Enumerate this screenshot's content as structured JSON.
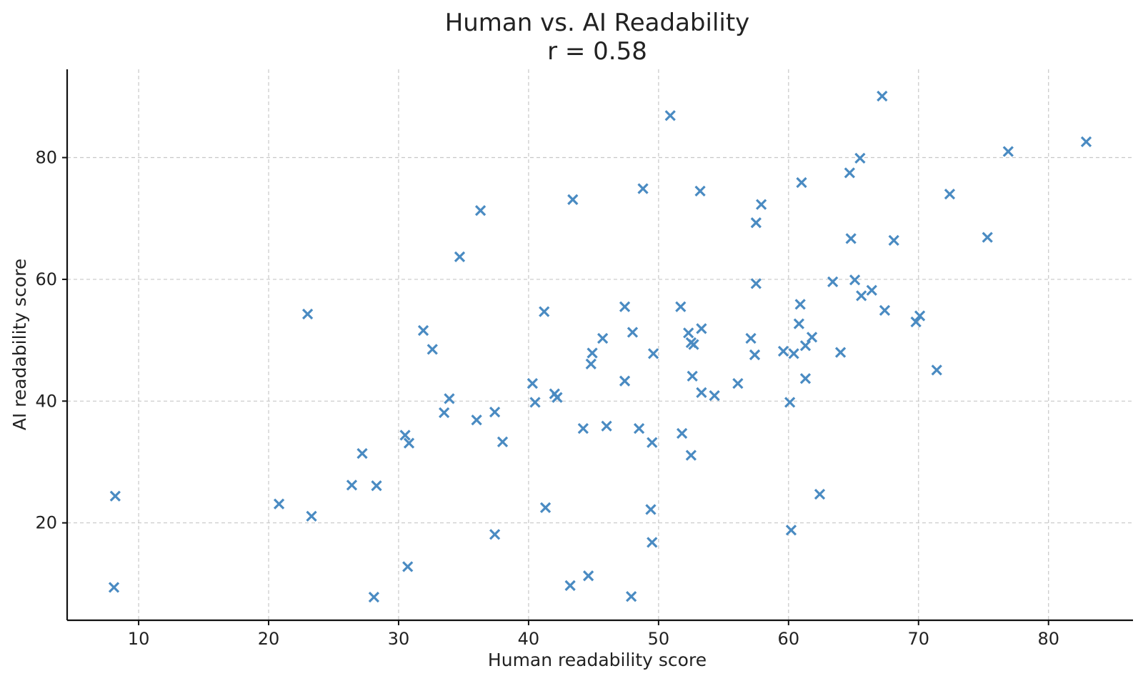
{
  "chart_data": {
    "type": "scatter",
    "title": "Human vs. AI Readability",
    "subtitle": "r = 0.58",
    "xlabel": "Human readability score",
    "ylabel": "AI readability score",
    "xlim": [
      4.5,
      86.5
    ],
    "ylim": [
      4,
      94.5
    ],
    "xticks": [
      10,
      20,
      30,
      40,
      50,
      60,
      70,
      80
    ],
    "yticks": [
      20,
      40,
      60,
      80
    ],
    "grid": true,
    "marker": "x",
    "color": "#4a8bc2",
    "points": [
      [
        8.2,
        24.4
      ],
      [
        8.1,
        9.4
      ],
      [
        20.8,
        23.1
      ],
      [
        23.0,
        54.3
      ],
      [
        23.3,
        21.1
      ],
      [
        26.4,
        26.2
      ],
      [
        27.2,
        31.4
      ],
      [
        28.1,
        7.8
      ],
      [
        28.3,
        26.1
      ],
      [
        30.5,
        34.4
      ],
      [
        30.8,
        33.1
      ],
      [
        30.7,
        12.8
      ],
      [
        31.9,
        51.6
      ],
      [
        32.6,
        48.5
      ],
      [
        33.5,
        38.1
      ],
      [
        33.9,
        40.4
      ],
      [
        34.7,
        63.7
      ],
      [
        36.0,
        36.9
      ],
      [
        36.3,
        71.3
      ],
      [
        37.4,
        38.2
      ],
      [
        37.4,
        18.1
      ],
      [
        38.0,
        33.3
      ],
      [
        40.3,
        42.9
      ],
      [
        40.5,
        39.8
      ],
      [
        41.2,
        54.7
      ],
      [
        41.3,
        22.5
      ],
      [
        42.0,
        41.2
      ],
      [
        42.2,
        40.6
      ],
      [
        43.2,
        9.7
      ],
      [
        43.4,
        73.1
      ],
      [
        44.2,
        35.5
      ],
      [
        44.6,
        11.3
      ],
      [
        44.8,
        46.1
      ],
      [
        44.9,
        47.9
      ],
      [
        45.7,
        50.3
      ],
      [
        46.0,
        35.9
      ],
      [
        47.4,
        55.5
      ],
      [
        47.4,
        43.3
      ],
      [
        47.9,
        7.9
      ],
      [
        48.0,
        51.3
      ],
      [
        48.5,
        35.5
      ],
      [
        48.8,
        74.9
      ],
      [
        49.4,
        22.2
      ],
      [
        49.5,
        33.2
      ],
      [
        49.5,
        16.8
      ],
      [
        49.6,
        47.8
      ],
      [
        50.9,
        86.9
      ],
      [
        51.7,
        55.5
      ],
      [
        51.8,
        34.7
      ],
      [
        52.3,
        51.2
      ],
      [
        52.5,
        31.1
      ],
      [
        52.5,
        49.6
      ],
      [
        52.6,
        44.1
      ],
      [
        52.7,
        49.3
      ],
      [
        53.2,
        74.5
      ],
      [
        53.3,
        51.9
      ],
      [
        53.3,
        41.4
      ],
      [
        54.3,
        40.9
      ],
      [
        56.1,
        42.9
      ],
      [
        57.1,
        50.3
      ],
      [
        57.4,
        47.6
      ],
      [
        57.5,
        69.3
      ],
      [
        57.5,
        59.3
      ],
      [
        57.9,
        72.3
      ],
      [
        59.6,
        48.2
      ],
      [
        60.1,
        39.8
      ],
      [
        60.2,
        18.8
      ],
      [
        60.4,
        47.8
      ],
      [
        60.8,
        52.7
      ],
      [
        60.9,
        55.9
      ],
      [
        61.0,
        75.9
      ],
      [
        61.3,
        43.7
      ],
      [
        61.3,
        49.1
      ],
      [
        61.8,
        50.5
      ],
      [
        62.4,
        24.7
      ],
      [
        63.4,
        59.6
      ],
      [
        64.0,
        48.0
      ],
      [
        64.7,
        77.5
      ],
      [
        64.8,
        66.7
      ],
      [
        65.1,
        59.9
      ],
      [
        65.5,
        79.9
      ],
      [
        65.6,
        57.3
      ],
      [
        66.4,
        58.2
      ],
      [
        67.2,
        90.1
      ],
      [
        67.4,
        54.9
      ],
      [
        68.1,
        66.4
      ],
      [
        69.8,
        53.0
      ],
      [
        70.1,
        54.0
      ],
      [
        71.4,
        45.1
      ],
      [
        72.4,
        74.0
      ],
      [
        75.3,
        66.9
      ],
      [
        76.9,
        81.0
      ],
      [
        82.9,
        82.6
      ]
    ]
  }
}
